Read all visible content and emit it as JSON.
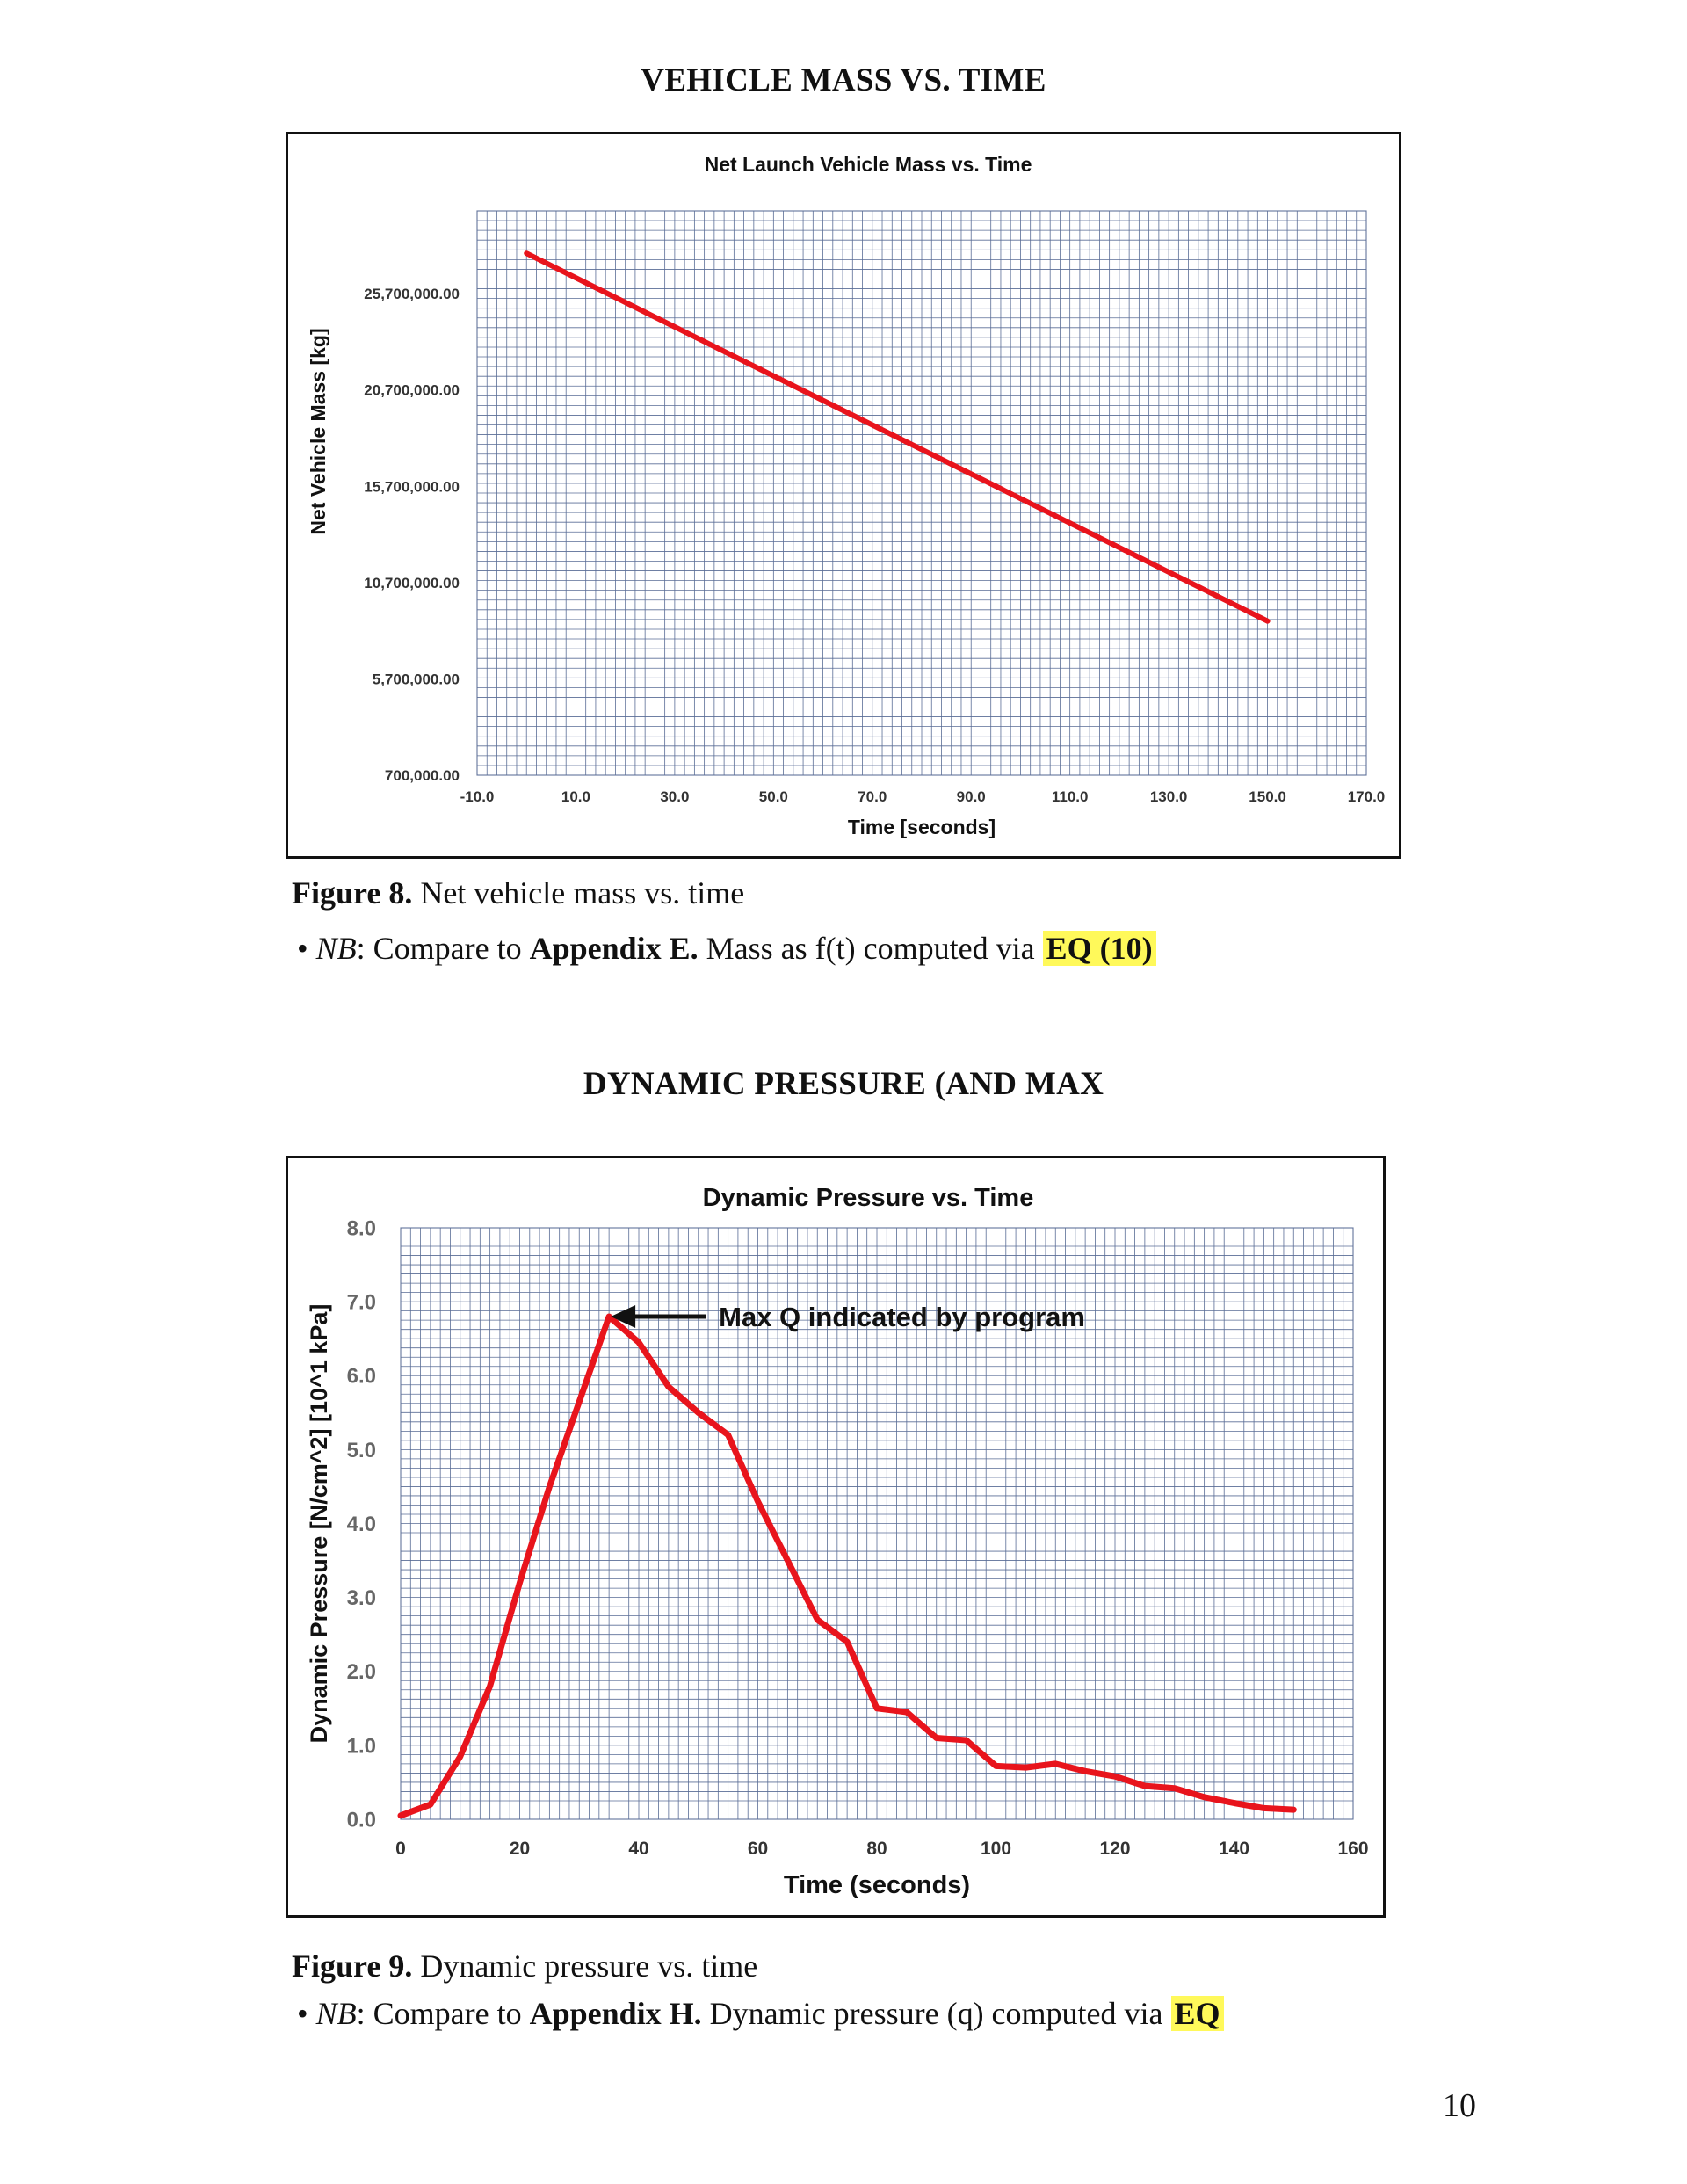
{
  "page": {
    "heading1": "VEHICLE MASS VS. TIME",
    "heading2": "DYNAMIC PRESSURE (AND MAX",
    "page_number": "10"
  },
  "captions": {
    "fig8": {
      "label": "Figure 8.",
      "text": " Net vehicle mass vs. time",
      "bullet": "• ",
      "nb": "NB",
      "colon": ": Compare to ",
      "appendix": "Appendix E.",
      "rest": " Mass as f(t) computed via ",
      "eq": "EQ (10)"
    },
    "fig9": {
      "label": "Figure 9.",
      "text": " Dynamic pressure vs. time",
      "bullet": "• ",
      "nb": "NB",
      "colon": ": Compare to ",
      "appendix": "Appendix H.",
      "rest": " Dynamic pressure (q) computed via ",
      "eq": "EQ"
    }
  },
  "chart_data": [
    {
      "type": "line",
      "title": "Net Launch Vehicle Mass vs. Time",
      "xlabel": "Time [seconds]",
      "ylabel": "Net Vehicle Mass  [kg]",
      "xlim": [
        -10,
        170
      ],
      "ylim": [
        700000,
        30000000
      ],
      "x_ticks": [
        "-10.0",
        "10.0",
        "30.0",
        "50.0",
        "70.0",
        "90.0",
        "110.0",
        "130.0",
        "150.0",
        "170.0"
      ],
      "x_tick_values": [
        -10,
        10,
        30,
        50,
        70,
        90,
        110,
        130,
        150,
        170
      ],
      "y_ticks": [
        "700,000.00",
        "5,700,000.00",
        "10,700,000.00",
        "15,700,000.00",
        "20,700,000.00",
        "25,700,000.00"
      ],
      "y_tick_values": [
        700000,
        5700000,
        10700000,
        15700000,
        20700000,
        25700000
      ],
      "grid": true,
      "line_color": "#e8141c",
      "series": [
        {
          "x": [
            0,
            150
          ],
          "y": [
            27800000,
            8700000
          ]
        }
      ]
    },
    {
      "type": "line",
      "title": "Dynamic Pressure vs. Time",
      "xlabel": "Time (seconds)",
      "ylabel": "Dynamic Pressure [N/cm^2] [10^1 kPa]",
      "xlim": [
        0,
        160
      ],
      "ylim": [
        0,
        8
      ],
      "x_ticks": [
        "0",
        "20",
        "40",
        "60",
        "80",
        "100",
        "120",
        "140",
        "160"
      ],
      "x_tick_values": [
        0,
        20,
        40,
        60,
        80,
        100,
        120,
        140,
        160
      ],
      "y_ticks": [
        "0.0",
        "1.0",
        "2.0",
        "3.0",
        "4.0",
        "5.0",
        "6.0",
        "7.0",
        "8.0"
      ],
      "y_tick_values": [
        0,
        1,
        2,
        3,
        4,
        5,
        6,
        7,
        8
      ],
      "grid": true,
      "line_color": "#e8141c",
      "annotation": {
        "text": "Max Q indicated by program",
        "x": 35,
        "y": 6.8
      },
      "series": [
        {
          "x": [
            0,
            5,
            10,
            15,
            20,
            25,
            30,
            35,
            40,
            45,
            50,
            55,
            60,
            65,
            70,
            75,
            80,
            85,
            90,
            95,
            100,
            105,
            110,
            115,
            120,
            125,
            130,
            135,
            140,
            145,
            150
          ],
          "y": [
            0.05,
            0.2,
            0.85,
            1.8,
            3.2,
            4.5,
            5.65,
            6.8,
            6.45,
            5.85,
            5.5,
            5.2,
            4.3,
            3.5,
            2.7,
            2.4,
            1.5,
            1.45,
            1.1,
            1.07,
            0.72,
            0.7,
            0.75,
            0.65,
            0.58,
            0.45,
            0.42,
            0.3,
            0.22,
            0.15,
            0.13
          ]
        }
      ]
    }
  ]
}
